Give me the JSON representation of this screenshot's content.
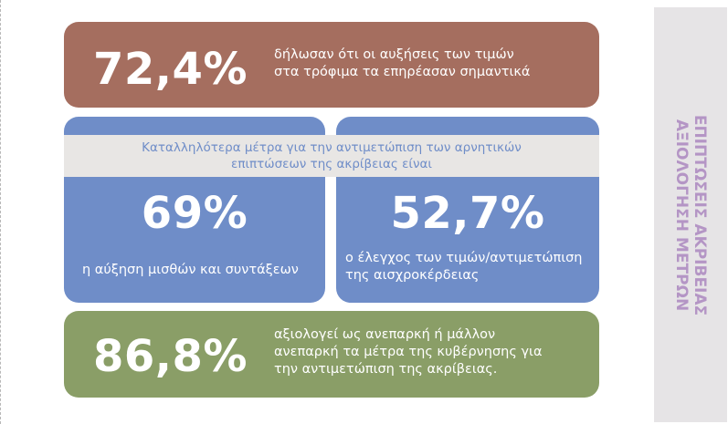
{
  "stat_top": {
    "value": "72,4%",
    "text_line1": "δήλωσαν ότι οι αυξήσεις των τιμών",
    "text_line2": "στα τρόφιμα τα επηρέασαν σημαντικά"
  },
  "band": {
    "line1": "Καταλληλότερα μέτρα για την αντιμετώπιση των αρνητικών",
    "line2": "επιπτώσεων της ακρίβειας είναι"
  },
  "stat_left": {
    "value": "69%",
    "text_line1": "η αύξηση μισθών και συντάξεων"
  },
  "stat_right": {
    "value": "52,7%",
    "text_line1": "ο έλεγχος των τιμών/αντιμετώπιση",
    "text_line2": "της αισχροκέρδειας"
  },
  "stat_bottom": {
    "value": "86,8%",
    "text_line1": "αξιολογεί ως ανεπαρκή ή μάλλον",
    "text_line2": "ανεπαρκή τα μέτρα της κυβέρνησης για",
    "text_line3": "την αντιμετώπιση της ακρίβειας."
  },
  "side": {
    "line1": "ΕΠΙΠΤΩΣΕΙΣ ΑΚΡΙΒΕΙΑΣ",
    "line2": "ΑΞΙΟΛΟΓΗΣΗ ΜΕΤΡΩΝ"
  },
  "colors": {
    "brown": "#a56e5f",
    "blue": "#6f8dc8",
    "green": "#8a9e67",
    "band_bg": "#e8e6e4",
    "side_bg": "#e6e4e6",
    "side_text": "#b495c5"
  }
}
